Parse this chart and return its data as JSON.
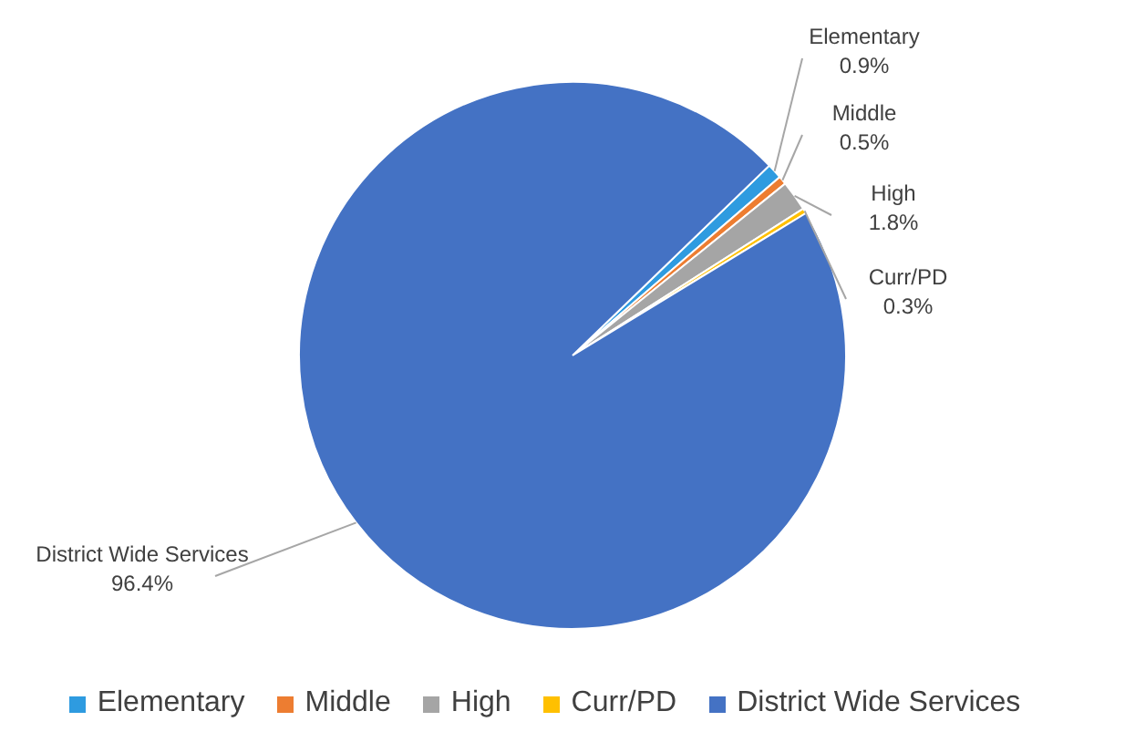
{
  "chart_data": {
    "type": "pie",
    "categories": [
      "Elementary",
      "Middle",
      "High",
      "Curr/PD",
      "District Wide Services"
    ],
    "values": [
      0.9,
      0.5,
      1.8,
      0.3,
      96.4
    ],
    "colors": [
      "#2e9be0",
      "#ed7d31",
      "#a5a5a5",
      "#ffc000",
      "#4472c4"
    ],
    "value_labels": [
      "0.9%",
      "0.5%",
      "1.8%",
      "0.3%",
      "96.4%"
    ],
    "legend": "bottom"
  }
}
